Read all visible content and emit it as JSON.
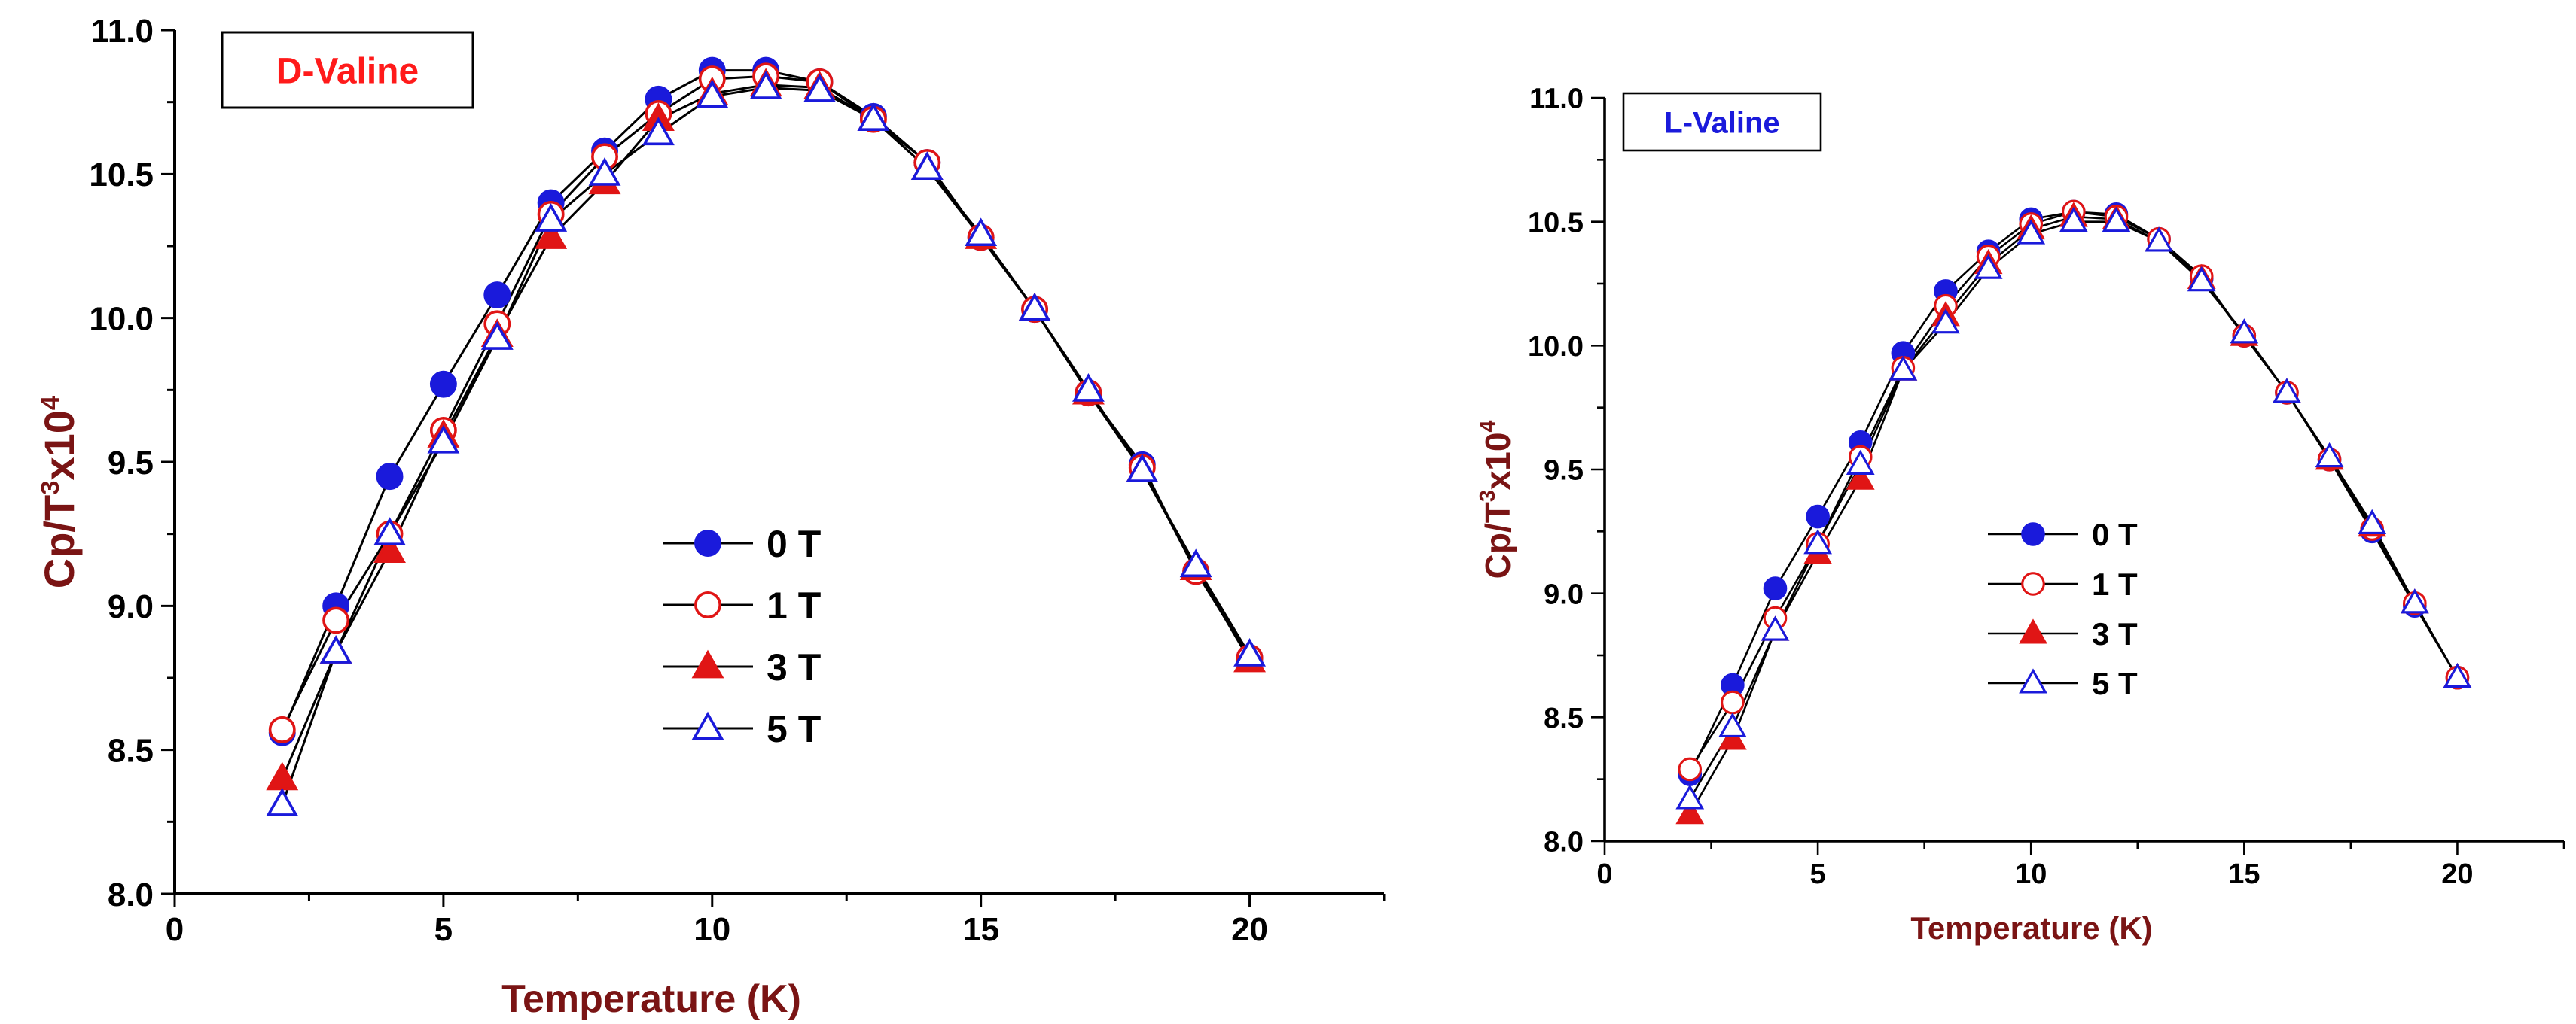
{
  "chart_data": [
    {
      "type": "line",
      "title": "D-Valine",
      "title_color": "#ff1a1a",
      "xlabel": "Temperature (K)",
      "ylabel_main": "Cp/T",
      "ylabel_exp": "3",
      "ylabel_tail": "x10",
      "ylabel_exp2": "4",
      "xlim": [
        0,
        22.5
      ],
      "ylim": [
        8.0,
        11.0
      ],
      "xticks": [
        "0",
        "5",
        "10",
        "15",
        "20"
      ],
      "yticks": [
        "8.0",
        "8.5",
        "9.0",
        "9.5",
        "10.0",
        "10.5",
        "11.0"
      ],
      "legend_position": "center-right",
      "series": [
        {
          "name": "0 T",
          "marker": "filled-circle",
          "color": "#1a1adb",
          "x": [
            2,
            3,
            4,
            5,
            6,
            7,
            8,
            9,
            10,
            11,
            12,
            13,
            14,
            15,
            16,
            17,
            18,
            19,
            20
          ],
          "y": [
            8.56,
            9.0,
            9.45,
            9.77,
            10.08,
            10.4,
            10.58,
            10.76,
            10.86,
            10.86,
            10.82,
            10.7,
            10.54,
            10.28,
            10.03,
            9.74,
            9.49,
            9.12,
            8.82
          ]
        },
        {
          "name": "1 T",
          "marker": "open-circle",
          "color": "#e01515",
          "x": [
            2,
            3,
            4,
            5,
            6,
            7,
            8,
            9,
            10,
            11,
            12,
            13,
            14,
            15,
            16,
            17,
            18,
            19,
            20
          ],
          "y": [
            8.57,
            8.95,
            9.25,
            9.61,
            9.98,
            10.36,
            10.56,
            10.71,
            10.83,
            10.84,
            10.82,
            10.69,
            10.54,
            10.28,
            10.03,
            9.74,
            9.48,
            9.12,
            8.82
          ]
        },
        {
          "name": "3 T",
          "marker": "filled-triangle",
          "color": "#e01515",
          "x": [
            2,
            3,
            4,
            5,
            6,
            7,
            8,
            9,
            10,
            11,
            12,
            13,
            14,
            15,
            16,
            17,
            18,
            19,
            20
          ],
          "y": [
            8.4,
            8.84,
            9.19,
            9.59,
            9.94,
            10.28,
            10.47,
            10.69,
            10.78,
            10.81,
            10.8,
            10.69,
            10.52,
            10.28,
            10.03,
            9.74,
            9.47,
            9.13,
            8.81
          ]
        },
        {
          "name": "5 T",
          "marker": "open-triangle",
          "color": "#1a1adb",
          "x": [
            2,
            3,
            4,
            5,
            6,
            7,
            8,
            9,
            10,
            11,
            12,
            13,
            14,
            15,
            16,
            17,
            18,
            19,
            20
          ],
          "y": [
            8.31,
            8.84,
            9.25,
            9.57,
            9.93,
            10.34,
            10.5,
            10.64,
            10.77,
            10.8,
            10.79,
            10.69,
            10.52,
            10.29,
            10.03,
            9.75,
            9.47,
            9.14,
            8.83
          ]
        }
      ]
    },
    {
      "type": "line",
      "title": "L-Valine",
      "title_color": "#1a1adb",
      "xlabel": "Temperature (K)",
      "ylabel_main": "Cp/T",
      "ylabel_exp": "3",
      "ylabel_tail": "x10",
      "ylabel_exp2": "4",
      "xlim": [
        0,
        22.5
      ],
      "ylim": [
        8.0,
        11.0
      ],
      "xticks": [
        "0",
        "5",
        "10",
        "15",
        "20"
      ],
      "yticks": [
        "8.0",
        "8.5",
        "9.0",
        "9.5",
        "10.0",
        "10.5",
        "11.0"
      ],
      "legend_position": "center-right",
      "series": [
        {
          "name": "0 T",
          "marker": "filled-circle",
          "color": "#1a1adb",
          "x": [
            2,
            3,
            4,
            5,
            6,
            7,
            8,
            9,
            10,
            11,
            12,
            13,
            14,
            15,
            16,
            17,
            18,
            19,
            20
          ],
          "y": [
            8.27,
            8.63,
            9.02,
            9.31,
            9.61,
            9.97,
            10.22,
            10.38,
            10.51,
            10.54,
            10.53,
            10.43,
            10.27,
            10.04,
            9.81,
            9.54,
            9.25,
            8.95,
            8.66
          ]
        },
        {
          "name": "1 T",
          "marker": "open-circle",
          "color": "#e01515",
          "x": [
            2,
            3,
            4,
            5,
            6,
            7,
            8,
            9,
            10,
            11,
            12,
            13,
            14,
            15,
            16,
            17,
            18,
            19,
            20
          ],
          "y": [
            8.29,
            8.56,
            8.9,
            9.2,
            9.55,
            9.91,
            10.16,
            10.36,
            10.49,
            10.54,
            10.52,
            10.43,
            10.28,
            10.04,
            9.81,
            9.54,
            9.26,
            8.96,
            8.66
          ]
        },
        {
          "name": "3 T",
          "marker": "filled-triangle",
          "color": "#e01515",
          "x": [
            2,
            3,
            4,
            5,
            6,
            7,
            8,
            9,
            10,
            11,
            12,
            13,
            14,
            15,
            16,
            17,
            18,
            19,
            20
          ],
          "y": [
            8.11,
            8.41,
            8.85,
            9.16,
            9.46,
            9.9,
            10.12,
            10.33,
            10.47,
            10.52,
            10.51,
            10.42,
            10.27,
            10.04,
            9.81,
            9.54,
            9.27,
            8.96,
            8.66
          ]
        },
        {
          "name": "5 T",
          "marker": "open-triangle",
          "color": "#1a1adb",
          "x": [
            2,
            3,
            4,
            5,
            6,
            7,
            8,
            9,
            10,
            11,
            12,
            13,
            14,
            15,
            16,
            17,
            18,
            19,
            20
          ],
          "y": [
            8.17,
            8.46,
            8.85,
            9.2,
            9.52,
            9.9,
            10.09,
            10.31,
            10.45,
            10.5,
            10.5,
            10.42,
            10.26,
            10.05,
            9.81,
            9.55,
            9.28,
            8.96,
            8.66
          ]
        }
      ]
    }
  ]
}
